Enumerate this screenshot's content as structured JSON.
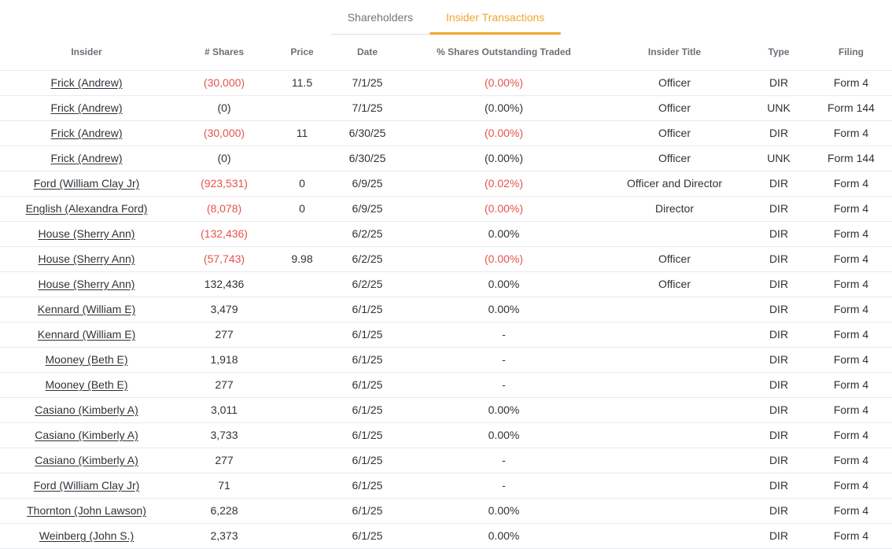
{
  "tabs": [
    {
      "label": "Shareholders",
      "active": false
    },
    {
      "label": "Insider Transactions",
      "active": true
    }
  ],
  "colors": {
    "accent_orange": "#EFA62C",
    "negative_red": "#E5534E"
  },
  "table": {
    "columns": [
      "Insider",
      "# Shares",
      "Price",
      "Date",
      "% Shares Outstanding Traded",
      "Insider Title",
      "Type",
      "Filing"
    ],
    "rows": [
      {
        "insider": "Frick (Andrew)",
        "shares": "(30,000)",
        "shares_neg": true,
        "price": "11.5",
        "date": "7/1/25",
        "pct": "(0.00%)",
        "pct_neg": true,
        "title": "Officer",
        "type": "DIR",
        "filing": "Form 4"
      },
      {
        "insider": "Frick (Andrew)",
        "shares": "(0)",
        "shares_neg": false,
        "price": "",
        "date": "7/1/25",
        "pct": "(0.00%)",
        "pct_neg": false,
        "title": "Officer",
        "type": "UNK",
        "filing": "Form 144"
      },
      {
        "insider": "Frick (Andrew)",
        "shares": "(30,000)",
        "shares_neg": true,
        "price": "11",
        "date": "6/30/25",
        "pct": "(0.00%)",
        "pct_neg": true,
        "title": "Officer",
        "type": "DIR",
        "filing": "Form 4"
      },
      {
        "insider": "Frick (Andrew)",
        "shares": "(0)",
        "shares_neg": false,
        "price": "",
        "date": "6/30/25",
        "pct": "(0.00%)",
        "pct_neg": false,
        "title": "Officer",
        "type": "UNK",
        "filing": "Form 144"
      },
      {
        "insider": "Ford (William Clay Jr)",
        "shares": "(923,531)",
        "shares_neg": true,
        "price": "0",
        "date": "6/9/25",
        "pct": "(0.02%)",
        "pct_neg": true,
        "title": "Officer and Director",
        "type": "DIR",
        "filing": "Form 4"
      },
      {
        "insider": "English (Alexandra Ford)",
        "shares": "(8,078)",
        "shares_neg": true,
        "price": "0",
        "date": "6/9/25",
        "pct": "(0.00%)",
        "pct_neg": true,
        "title": "Director",
        "type": "DIR",
        "filing": "Form 4"
      },
      {
        "insider": "House (Sherry Ann)",
        "shares": "(132,436)",
        "shares_neg": true,
        "price": "",
        "date": "6/2/25",
        "pct": "0.00%",
        "pct_neg": false,
        "title": "",
        "type": "DIR",
        "filing": "Form 4"
      },
      {
        "insider": "House (Sherry Ann)",
        "shares": "(57,743)",
        "shares_neg": true,
        "price": "9.98",
        "date": "6/2/25",
        "pct": "(0.00%)",
        "pct_neg": true,
        "title": "Officer",
        "type": "DIR",
        "filing": "Form 4"
      },
      {
        "insider": "House (Sherry Ann)",
        "shares": "132,436",
        "shares_neg": false,
        "price": "",
        "date": "6/2/25",
        "pct": "0.00%",
        "pct_neg": false,
        "title": "Officer",
        "type": "DIR",
        "filing": "Form 4"
      },
      {
        "insider": "Kennard (William E)",
        "shares": "3,479",
        "shares_neg": false,
        "price": "",
        "date": "6/1/25",
        "pct": "0.00%",
        "pct_neg": false,
        "title": "",
        "type": "DIR",
        "filing": "Form 4"
      },
      {
        "insider": "Kennard (William E)",
        "shares": "277",
        "shares_neg": false,
        "price": "",
        "date": "6/1/25",
        "pct": "-",
        "pct_neg": false,
        "title": "",
        "type": "DIR",
        "filing": "Form 4"
      },
      {
        "insider": "Mooney (Beth E)",
        "shares": "1,918",
        "shares_neg": false,
        "price": "",
        "date": "6/1/25",
        "pct": "-",
        "pct_neg": false,
        "title": "",
        "type": "DIR",
        "filing": "Form 4"
      },
      {
        "insider": "Mooney (Beth E)",
        "shares": "277",
        "shares_neg": false,
        "price": "",
        "date": "6/1/25",
        "pct": "-",
        "pct_neg": false,
        "title": "",
        "type": "DIR",
        "filing": "Form 4"
      },
      {
        "insider": "Casiano (Kimberly A)",
        "shares": "3,011",
        "shares_neg": false,
        "price": "",
        "date": "6/1/25",
        "pct": "0.00%",
        "pct_neg": false,
        "title": "",
        "type": "DIR",
        "filing": "Form 4"
      },
      {
        "insider": "Casiano (Kimberly A)",
        "shares": "3,733",
        "shares_neg": false,
        "price": "",
        "date": "6/1/25",
        "pct": "0.00%",
        "pct_neg": false,
        "title": "",
        "type": "DIR",
        "filing": "Form 4"
      },
      {
        "insider": "Casiano (Kimberly A)",
        "shares": "277",
        "shares_neg": false,
        "price": "",
        "date": "6/1/25",
        "pct": "-",
        "pct_neg": false,
        "title": "",
        "type": "DIR",
        "filing": "Form 4"
      },
      {
        "insider": "Ford (William Clay Jr)",
        "shares": "71",
        "shares_neg": false,
        "price": "",
        "date": "6/1/25",
        "pct": "-",
        "pct_neg": false,
        "title": "",
        "type": "DIR",
        "filing": "Form 4"
      },
      {
        "insider": "Thornton (John Lawson)",
        "shares": "6,228",
        "shares_neg": false,
        "price": "",
        "date": "6/1/25",
        "pct": "0.00%",
        "pct_neg": false,
        "title": "",
        "type": "DIR",
        "filing": "Form 4"
      },
      {
        "insider": "Weinberg (John S.)",
        "shares": "2,373",
        "shares_neg": false,
        "price": "",
        "date": "6/1/25",
        "pct": "0.00%",
        "pct_neg": false,
        "title": "",
        "type": "DIR",
        "filing": "Form 4"
      }
    ]
  }
}
